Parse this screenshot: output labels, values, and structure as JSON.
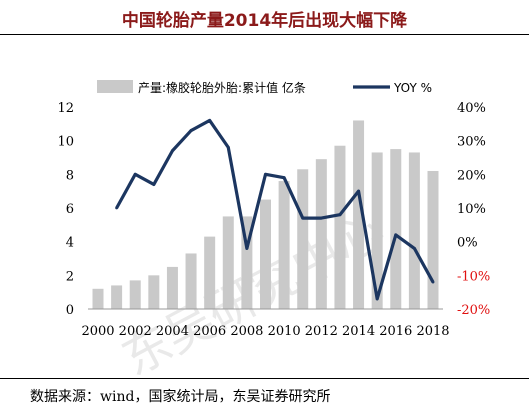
{
  "title": "中国轮胎产量2014年后出现大幅下降",
  "source": "数据来源：wind，国家统计局，东吴证券研究所",
  "watermark": "东吴研究中心",
  "chart_data": {
    "type": "bar",
    "categories": [
      "2000",
      "2001",
      "2002",
      "2003",
      "2004",
      "2005",
      "2006",
      "2007",
      "2008",
      "2009",
      "2010",
      "2011",
      "2012",
      "2013",
      "2014",
      "2015",
      "2016",
      "2017",
      "2018"
    ],
    "x_tick_labels": [
      "2000",
      "2002",
      "2004",
      "2006",
      "2008",
      "2010",
      "2012",
      "2014",
      "2016",
      "2018"
    ],
    "series": [
      {
        "name": "产量:橡胶轮胎外胎:累计值 亿条",
        "type": "bar",
        "axis": "left",
        "color": "#c9c9c9",
        "values": [
          1.2,
          1.4,
          1.7,
          2.0,
          2.5,
          3.3,
          4.3,
          5.5,
          5.5,
          6.5,
          7.6,
          8.3,
          8.9,
          9.7,
          11.2,
          9.3,
          9.5,
          9.3,
          8.2
        ]
      },
      {
        "name": "YOY %",
        "type": "line",
        "axis": "right",
        "color": "#1c3660",
        "values": [
          null,
          10,
          20,
          17,
          27,
          33,
          36,
          28,
          -2,
          20,
          19,
          7,
          7,
          8,
          15,
          -17,
          2,
          -2,
          -12
        ]
      }
    ],
    "y_left": {
      "min": 0,
      "max": 12,
      "ticks": [
        0,
        2,
        4,
        6,
        8,
        10,
        12
      ]
    },
    "y_right": {
      "min": -20,
      "max": 40,
      "ticks": [
        "-20%",
        "-10%",
        "0%",
        "10%",
        "20%",
        "30%",
        "40%"
      ],
      "negative_color": "#e01010"
    },
    "legend_position": "top",
    "grid": false
  }
}
